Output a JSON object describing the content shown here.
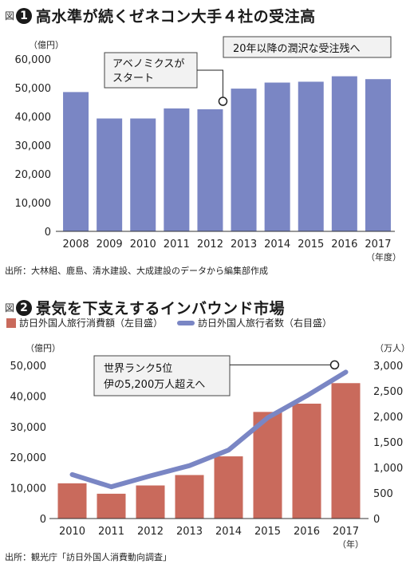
{
  "figure1": {
    "label": "図",
    "number": "1",
    "title": "高水準が続くゼネコン大手４社の受注高",
    "source": "出所：大林組、鹿島、清水建設、大成建設のデータから編集部作成",
    "annotation_abenomics": [
      "アベノミクスが",
      "スタート"
    ],
    "annotation_post2020": "20年以降の潤沢な受注残へ"
  },
  "figure2": {
    "label": "図",
    "number": "2",
    "title": "景気を下支えするインバウンド市場",
    "source": "出所：観光庁「訪日外国人消費動向調査」",
    "annotation": [
      "世界ランク5位",
      "伊の5,200万人超えへ"
    ]
  },
  "colors": {
    "bar1": "#7a86c4",
    "bar2": "#c96a5c",
    "line2": "#7a86c4"
  },
  "chart_data": [
    {
      "type": "bar",
      "title": "高水準が続くゼネコン大手４社の受注高",
      "y_unit": "（億円）",
      "x_unit": "（年度）",
      "categories": [
        "2008",
        "2009",
        "2010",
        "2011",
        "2012",
        "2013",
        "2014",
        "2015",
        "2016",
        "2017"
      ],
      "values": [
        48500,
        39300,
        39300,
        42800,
        42500,
        49700,
        51800,
        52100,
        54000,
        53000
      ],
      "ylim": [
        0,
        60000
      ],
      "yticks": [
        "0",
        "10,000",
        "20,000",
        "30,000",
        "40,000",
        "50,000",
        "60,000"
      ]
    },
    {
      "type": "bar+line",
      "title": "景気を下支えするインバウンド市場",
      "categories": [
        "2010",
        "2011",
        "2012",
        "2013",
        "2014",
        "2015",
        "2016",
        "2017"
      ],
      "x_unit": "（年）",
      "series": [
        {
          "name": "訪日外国人旅行消費額（左目盛）",
          "axis": "left",
          "kind": "bar",
          "values": [
            11500,
            8100,
            10800,
            14200,
            20300,
            34800,
            37500,
            44200
          ]
        },
        {
          "name": "訪日外国人旅行者数（右目盛）",
          "axis": "right",
          "kind": "line",
          "values": [
            861,
            622,
            836,
            1036,
            1341,
            1974,
            2404,
            2869
          ]
        }
      ],
      "left_unit": "（億円）",
      "right_unit": "（万人）",
      "left_ylim": [
        0,
        50000
      ],
      "right_ylim": [
        0,
        3000
      ],
      "left_yticks": [
        "0",
        "10,000",
        "20,000",
        "30,000",
        "40,000",
        "50,000"
      ],
      "right_yticks": [
        "0",
        "500",
        "1,000",
        "1,500",
        "2,000",
        "2,500",
        "3,000"
      ]
    }
  ]
}
